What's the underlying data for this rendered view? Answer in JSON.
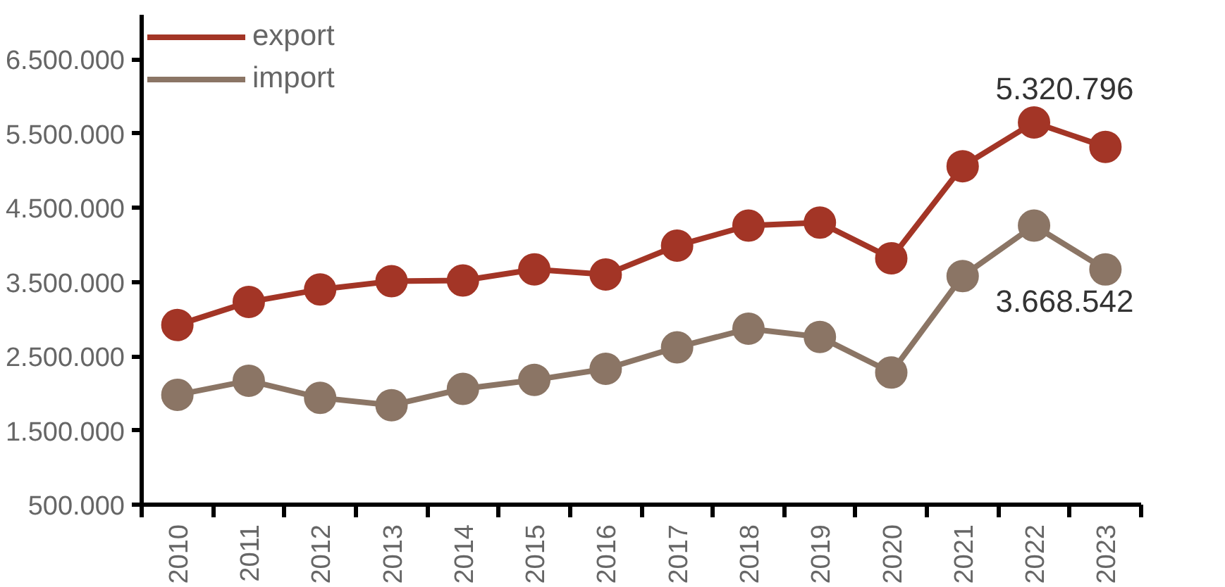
{
  "chart_data": {
    "type": "line",
    "categories": [
      "2010",
      "2011",
      "2012",
      "2013",
      "2014",
      "2015",
      "2016",
      "2017",
      "2018",
      "2019",
      "2020",
      "2021",
      "2022",
      "2023"
    ],
    "series": [
      {
        "name": "export",
        "color": "#a33526",
        "values": [
          2920000,
          3230000,
          3400000,
          3510000,
          3520000,
          3670000,
          3600000,
          3990000,
          4260000,
          4300000,
          3820000,
          5060000,
          5650000,
          5320796
        ],
        "value_labels": [
          null,
          null,
          null,
          null,
          null,
          null,
          null,
          null,
          null,
          null,
          null,
          null,
          null,
          "5.320.796"
        ]
      },
      {
        "name": "import",
        "color": "#8b7565",
        "values": [
          1980000,
          2170000,
          1940000,
          1840000,
          2060000,
          2180000,
          2330000,
          2620000,
          2870000,
          2760000,
          2280000,
          3580000,
          4260000,
          3668542
        ],
        "value_labels": [
          null,
          null,
          null,
          null,
          null,
          null,
          null,
          null,
          null,
          null,
          null,
          null,
          null,
          "3.668.542"
        ]
      }
    ],
    "ylim": [
      500000,
      7100000
    ],
    "yticks": [
      {
        "value": 500000,
        "label": "500.000"
      },
      {
        "value": 1500000,
        "label": "1.500.000"
      },
      {
        "value": 2500000,
        "label": "2.500.000"
      },
      {
        "value": 3500000,
        "label": "3.500.000"
      },
      {
        "value": 4500000,
        "label": "4.500.000"
      },
      {
        "value": 5500000,
        "label": "5.500.000"
      },
      {
        "value": 6500000,
        "label": "6.500.000"
      }
    ],
    "marker": "circle",
    "line_style": "solid",
    "grid": false,
    "legend": "top left"
  }
}
